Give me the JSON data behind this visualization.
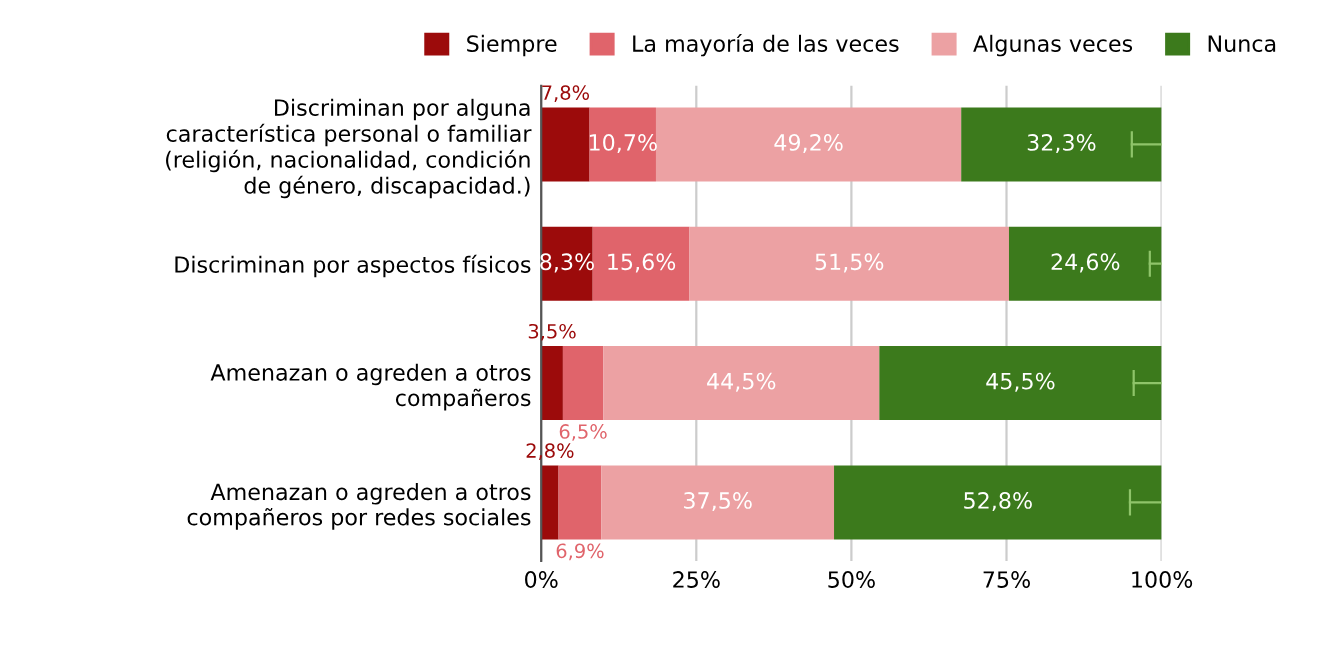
{
  "chart_data": {
    "type": "bar",
    "orientation": "horizontal",
    "stacked": true,
    "categories": [
      "Discriminan por alguna característica personal o familiar (religión, nacionalidad, condición de género, discapacidad.)",
      "Discriminan por aspectos físicos",
      "Amenazan o agreden a otros compañeros",
      "Amenazan o agreden a otros compañeros por redes sociales"
    ],
    "series": [
      {
        "name": "Siempre",
        "color": "#9c0b0b",
        "values": [
          7.8,
          8.3,
          3.5,
          2.8
        ],
        "value_labels": [
          "7,8%",
          "8,3%",
          "3,5%",
          "2,8%"
        ]
      },
      {
        "name": "La mayoría de las veces",
        "color": "#e0646b",
        "values": [
          10.7,
          15.6,
          6.5,
          6.9
        ],
        "value_labels": [
          "10,7%",
          "15,6%",
          "6,5%",
          "6,9%"
        ]
      },
      {
        "name": "Algunas veces",
        "color": "#eca1a3",
        "values": [
          49.2,
          51.5,
          44.5,
          37.5
        ],
        "value_labels": [
          "49,2%",
          "51,5%",
          "44,5%",
          "37,5%"
        ]
      },
      {
        "name": "Nunca",
        "color": "#3c7a1c",
        "values": [
          32.3,
          24.6,
          45.5,
          52.8
        ],
        "value_labels": [
          "32,3%",
          "24,6%",
          "45,5%",
          "52,8%"
        ],
        "errors": [
          [
            95.2,
            100
          ],
          [
            98.1,
            100
          ],
          [
            95.5,
            100
          ],
          [
            94.9,
            100
          ]
        ]
      }
    ],
    "xlim": [
      0,
      100
    ],
    "xticks": [
      {
        "value": 0,
        "label": "0%"
      },
      {
        "value": 25,
        "label": "25%"
      },
      {
        "value": 50,
        "label": "50%"
      },
      {
        "value": 75,
        "label": "75%"
      },
      {
        "value": 100,
        "label": "100%"
      }
    ],
    "grid": "x",
    "legend": "top"
  }
}
